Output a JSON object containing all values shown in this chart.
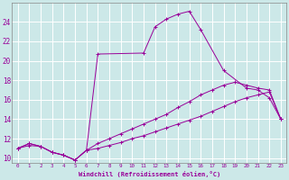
{
  "xlabel": "Windchill (Refroidissement éolien,°C)",
  "bg_color": "#cce8e8",
  "grid_color": "#ffffff",
  "line_color": "#990099",
  "xlim": [
    -0.5,
    23.5
  ],
  "ylim": [
    9.5,
    26.0
  ],
  "xticks": [
    0,
    1,
    2,
    3,
    4,
    5,
    6,
    7,
    8,
    9,
    10,
    11,
    12,
    13,
    14,
    15,
    16,
    17,
    18,
    19,
    20,
    21,
    22,
    23
  ],
  "yticks": [
    10,
    12,
    14,
    16,
    18,
    20,
    22,
    24
  ],
  "series": [
    {
      "x": [
        0,
        1,
        2,
        3,
        4,
        5,
        6,
        7,
        11,
        12,
        13,
        14,
        15,
        16,
        18,
        20,
        21,
        22,
        23
      ],
      "y": [
        11.0,
        11.5,
        11.2,
        10.6,
        10.3,
        9.8,
        10.8,
        20.7,
        20.8,
        23.5,
        24.3,
        24.8,
        25.1,
        23.2,
        19.0,
        17.2,
        17.0,
        16.2,
        14.0
      ]
    },
    {
      "x": [
        0,
        1,
        2,
        3,
        4,
        5,
        6,
        7,
        8,
        9,
        10,
        11,
        12,
        13,
        14,
        15,
        16,
        17,
        18,
        19,
        20,
        21,
        22,
        23
      ],
      "y": [
        11.0,
        11.5,
        11.2,
        10.6,
        10.3,
        9.8,
        10.8,
        11.5,
        12.0,
        12.5,
        13.0,
        13.5,
        14.0,
        14.5,
        15.2,
        15.8,
        16.5,
        17.0,
        17.5,
        17.8,
        17.5,
        17.2,
        17.0,
        14.0
      ]
    },
    {
      "x": [
        0,
        1,
        2,
        3,
        4,
        5,
        6,
        7,
        8,
        9,
        10,
        11,
        12,
        13,
        14,
        15,
        16,
        17,
        18,
        19,
        20,
        21,
        22,
        23
      ],
      "y": [
        11.0,
        11.3,
        11.2,
        10.6,
        10.3,
        9.8,
        10.8,
        11.0,
        11.3,
        11.6,
        12.0,
        12.3,
        12.7,
        13.1,
        13.5,
        13.9,
        14.3,
        14.8,
        15.3,
        15.8,
        16.2,
        16.5,
        16.8,
        14.0
      ]
    }
  ]
}
